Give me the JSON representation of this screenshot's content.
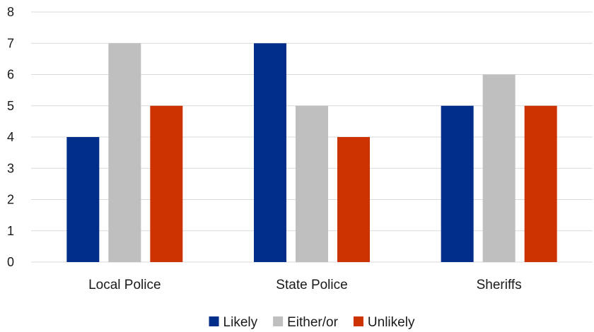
{
  "chart_data": {
    "type": "bar",
    "categories": [
      "Local Police",
      "State Police",
      "Sheriffs"
    ],
    "series": [
      {
        "name": "Likely",
        "values": [
          4,
          7,
          5
        ],
        "color": "#002d8a"
      },
      {
        "name": "Either/or",
        "values": [
          7,
          5,
          6
        ],
        "color": "#bfbfbf"
      },
      {
        "name": "Unlikely",
        "values": [
          5,
          4,
          5
        ],
        "color": "#cc3300"
      }
    ],
    "yticks": [
      "0",
      "1",
      "2",
      "3",
      "4",
      "5",
      "6",
      "7",
      "8"
    ],
    "ylim": [
      0,
      8
    ],
    "grid": true,
    "legend_position": "bottom",
    "title": "",
    "xlabel": "",
    "ylabel": ""
  }
}
